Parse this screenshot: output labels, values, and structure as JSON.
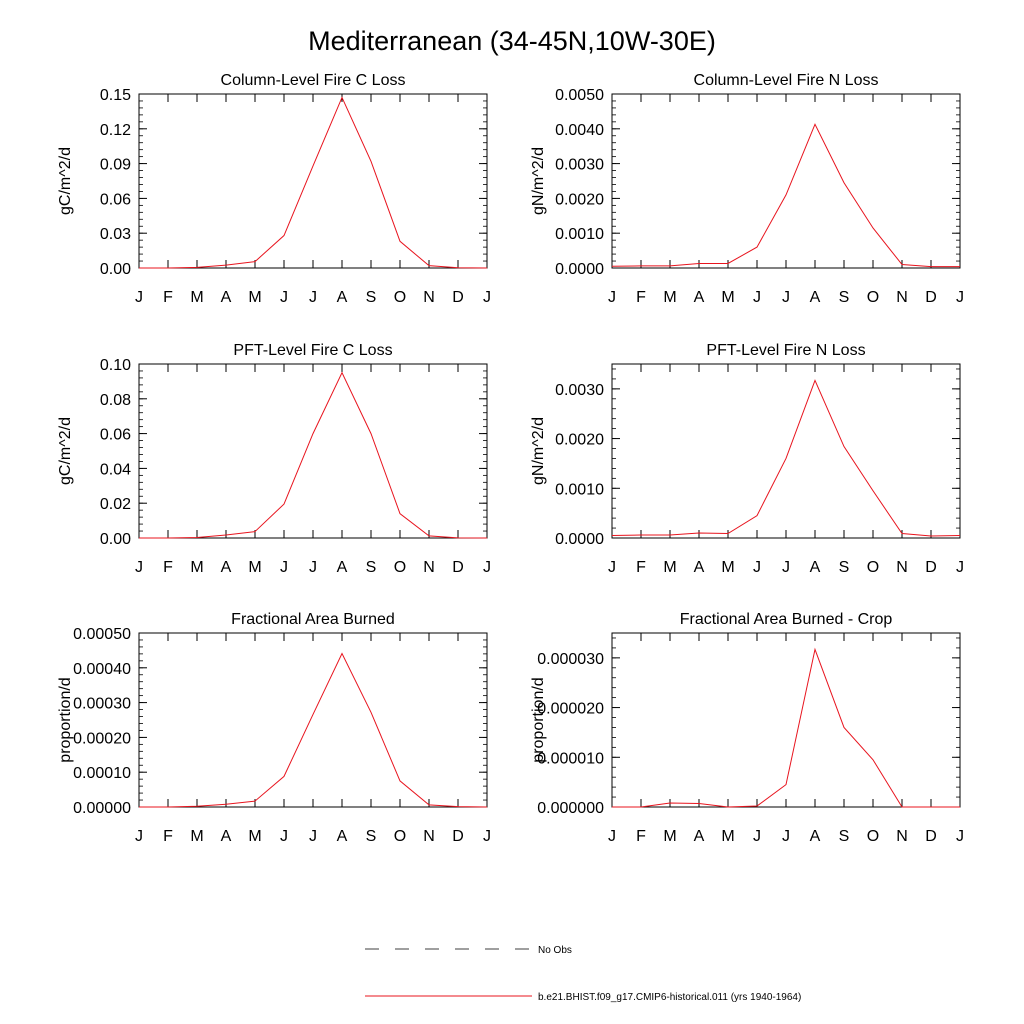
{
  "figure": {
    "title": "Mediterranean (34-45N,10W-30E)"
  },
  "colors": {
    "series": "#e8141e",
    "obs": "#000000",
    "axis": "#000000"
  },
  "legend": {
    "placement": "bottom-center",
    "entries": [
      {
        "label": "No Obs",
        "style": "dashed",
        "color": "#000000"
      },
      {
        "label": "b.e21.BHIST.f09_g17.CMIP6-historical.011 (yrs 1940-1964)",
        "style": "solid",
        "color": "#e8141e"
      }
    ]
  },
  "chart_data": [
    {
      "type": "line",
      "title": "Column-Level Fire C Loss",
      "ylabel": "gC/m^2/d",
      "xlabel": "",
      "categories": [
        "J",
        "F",
        "M",
        "A",
        "M",
        "J",
        "J",
        "A",
        "S",
        "O",
        "N",
        "D",
        "J"
      ],
      "ylim": [
        0,
        0.15
      ],
      "yticks": [
        0.0,
        0.03,
        0.06,
        0.09,
        0.12,
        0.15
      ],
      "ytick_labels": [
        "0.00",
        "0.03",
        "0.06",
        "0.09",
        "0.12",
        "0.15"
      ],
      "series": [
        {
          "name": "b.e21.BHIST.f09_g17.CMIP6-historical.011 (yrs 1940-1964)",
          "values": [
            0.0,
            0.0,
            0.0005,
            0.0025,
            0.0055,
            0.028,
            0.088,
            0.147,
            0.092,
            0.023,
            0.002,
            0.0002,
            0.0
          ]
        }
      ]
    },
    {
      "type": "line",
      "title": "Column-Level Fire N Loss",
      "ylabel": "gN/m^2/d",
      "xlabel": "",
      "categories": [
        "J",
        "F",
        "M",
        "A",
        "M",
        "J",
        "J",
        "A",
        "S",
        "O",
        "N",
        "D",
        "J"
      ],
      "ylim": [
        0,
        0.005
      ],
      "yticks": [
        0.0,
        0.001,
        0.002,
        0.003,
        0.004,
        0.005
      ],
      "ytick_labels": [
        "0.0000",
        "0.0010",
        "0.0020",
        "0.0030",
        "0.0040",
        "0.0050"
      ],
      "series": [
        {
          "name": "b.e21.BHIST.f09_g17.CMIP6-historical.011 (yrs 1940-1964)",
          "values": [
            5e-05,
            6e-05,
            6e-05,
            0.00013,
            0.00013,
            0.0006,
            0.0021,
            0.00413,
            0.00245,
            0.00115,
            0.0001,
            4e-05,
            4e-05
          ]
        }
      ]
    },
    {
      "type": "line",
      "title": "PFT-Level Fire C Loss",
      "ylabel": "gC/m^2/d",
      "xlabel": "",
      "categories": [
        "J",
        "F",
        "M",
        "A",
        "M",
        "J",
        "J",
        "A",
        "S",
        "O",
        "N",
        "D",
        "J"
      ],
      "ylim": [
        0,
        0.1
      ],
      "yticks": [
        0.0,
        0.02,
        0.04,
        0.06,
        0.08,
        0.1
      ],
      "ytick_labels": [
        "0.00",
        "0.02",
        "0.04",
        "0.06",
        "0.08",
        "0.10"
      ],
      "series": [
        {
          "name": "b.e21.BHIST.f09_g17.CMIP6-historical.011 (yrs 1940-1964)",
          "values": [
            0.0,
            0.0,
            0.0003,
            0.0017,
            0.0037,
            0.0195,
            0.06,
            0.095,
            0.06,
            0.014,
            0.0012,
            0.0001,
            0.0
          ]
        }
      ]
    },
    {
      "type": "line",
      "title": "PFT-Level Fire N Loss",
      "ylabel": "gN/m^2/d",
      "xlabel": "",
      "categories": [
        "J",
        "F",
        "M",
        "A",
        "M",
        "J",
        "J",
        "A",
        "S",
        "O",
        "N",
        "D",
        "J"
      ],
      "ylim": [
        0,
        0.0035
      ],
      "yticks": [
        0.0,
        0.001,
        0.002,
        0.003
      ],
      "ytick_labels": [
        "0.0000",
        "0.0010",
        "0.0020",
        "0.0030"
      ],
      "series": [
        {
          "name": "b.e21.BHIST.f09_g17.CMIP6-historical.011 (yrs 1940-1964)",
          "values": [
            5e-05,
            6e-05,
            6e-05,
            0.0001,
            9e-05,
            0.00045,
            0.0016,
            0.00317,
            0.00184,
            0.00095,
            9e-05,
            4e-05,
            5e-05
          ]
        }
      ]
    },
    {
      "type": "line",
      "title": "Fractional Area Burned",
      "ylabel": "proportion/d",
      "xlabel": "",
      "categories": [
        "J",
        "F",
        "M",
        "A",
        "M",
        "J",
        "J",
        "A",
        "S",
        "O",
        "N",
        "D",
        "J"
      ],
      "ylim": [
        0,
        0.0005
      ],
      "yticks": [
        0.0,
        0.0001,
        0.0002,
        0.0003,
        0.0004,
        0.0005
      ],
      "ytick_labels": [
        "0.00000",
        "0.00010",
        "0.00020",
        "0.00030",
        "0.00040",
        "0.00050"
      ],
      "series": [
        {
          "name": "b.e21.BHIST.f09_g17.CMIP6-historical.011 (yrs 1940-1964)",
          "values": [
            0.0,
            0.0,
            2e-06,
            8e-06,
            1.7e-05,
            8.8e-05,
            0.000266,
            0.000441,
            0.000272,
            7.5e-05,
            6e-06,
            1e-06,
            0.0
          ]
        }
      ]
    },
    {
      "type": "line",
      "title": "Fractional Area Burned - Crop",
      "ylabel": "proportion/d",
      "xlabel": "",
      "categories": [
        "J",
        "F",
        "M",
        "A",
        "M",
        "J",
        "J",
        "A",
        "S",
        "O",
        "N",
        "D",
        "J"
      ],
      "ylim": [
        0,
        3.5e-05
      ],
      "yticks": [
        0.0,
        1e-05,
        2e-05,
        3e-05
      ],
      "ytick_labels": [
        "0.000000",
        "0.000010",
        "0.000020",
        "0.000030"
      ],
      "series": [
        {
          "name": "b.e21.BHIST.f09_g17.CMIP6-historical.011 (yrs 1940-1964)",
          "values": [
            0.0,
            0.0,
            8e-07,
            7e-07,
            0.0,
            2e-07,
            4.5e-06,
            3.17e-05,
            1.6e-05,
            9.5e-06,
            0.0,
            0.0,
            0.0
          ]
        }
      ]
    }
  ]
}
